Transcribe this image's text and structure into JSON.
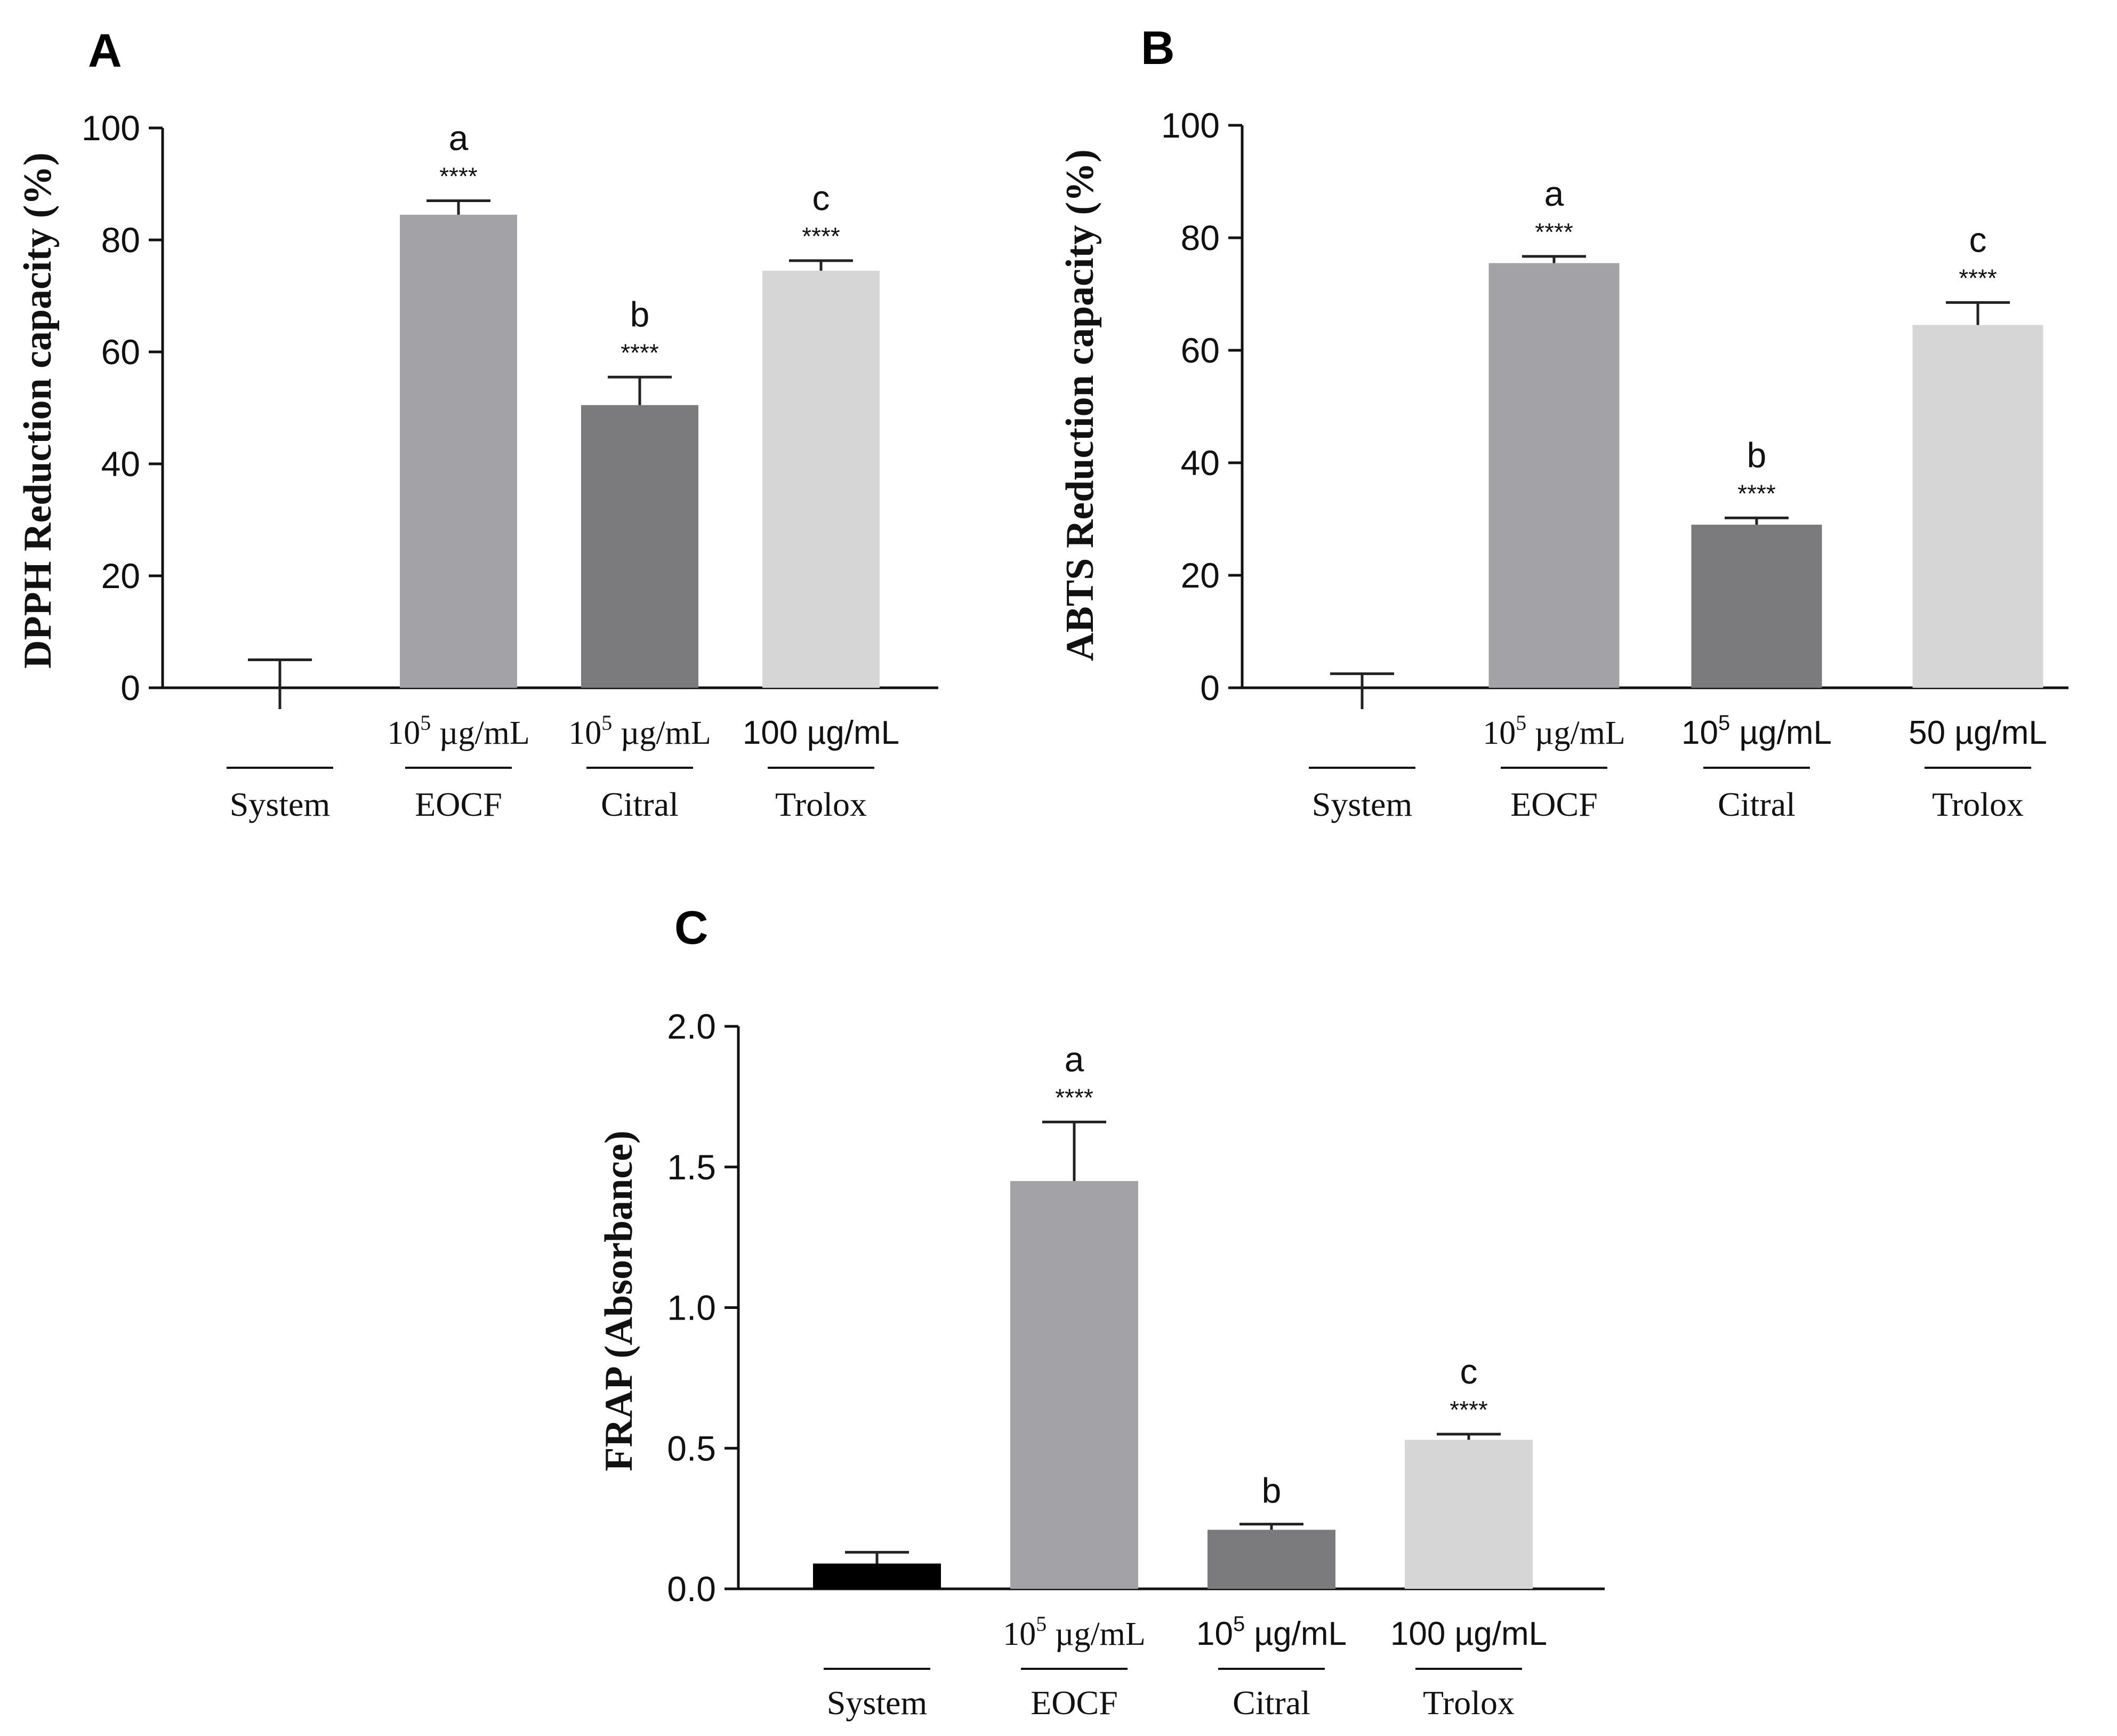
{
  "chart_data": [
    {
      "panel": "A",
      "type": "bar",
      "ylabel": "DPPH Reduction capacity (%)",
      "ylim": [
        0,
        100
      ],
      "yticks": [
        "0",
        "20",
        "40",
        "60",
        "80",
        "100"
      ],
      "categories": [
        "System",
        "EOCF",
        "Citral",
        "Trolox"
      ],
      "concentrations": [
        {
          "base": "",
          "sup": "",
          "unit": ""
        },
        {
          "base": "10",
          "sup": "5",
          "unit": " µg/mL"
        },
        {
          "base": "10",
          "sup": "5",
          "unit": " µg/mL"
        },
        {
          "base": "100",
          "sup": "",
          "unit": " µg/mL"
        }
      ],
      "values": [
        0,
        84.5,
        50.5,
        74.5
      ],
      "errors": [
        5,
        2.5,
        5,
        1.8
      ],
      "letters": [
        "",
        "a",
        "b",
        "c"
      ],
      "stars": [
        "",
        "****",
        "****",
        "****"
      ],
      "colors": [
        "#000000",
        "#a3a2a7",
        "#7b7b7d",
        "#d6d6d6"
      ]
    },
    {
      "panel": "B",
      "type": "bar",
      "ylabel": "ABTS Reduction capacity (%)",
      "ylim": [
        0,
        100
      ],
      "yticks": [
        "0",
        "20",
        "40",
        "60",
        "80",
        "100"
      ],
      "categories": [
        "System",
        "EOCF",
        "Citral",
        "Trolox"
      ],
      "concentrations": [
        {
          "base": "",
          "sup": "",
          "unit": ""
        },
        {
          "base": "10",
          "sup": "5",
          "unit": " µg/mL"
        },
        {
          "base": "10",
          "sup": "5",
          "unit": " µg/mL"
        },
        {
          "base": "50",
          "sup": "",
          "unit": " µg/mL"
        }
      ],
      "values": [
        0,
        75.5,
        29,
        64.5
      ],
      "errors": [
        2.5,
        1.2,
        1.2,
        4
      ],
      "letters": [
        "",
        "a",
        "b",
        "c"
      ],
      "stars": [
        "",
        "****",
        "****",
        "****"
      ],
      "colors": [
        "#000000",
        "#a3a2a7",
        "#7b7b7d",
        "#d6d6d6"
      ]
    },
    {
      "panel": "C",
      "type": "bar",
      "ylabel": "FRAP (Absorbance)",
      "ylim": [
        0,
        2.0
      ],
      "yticks": [
        "0.0",
        "0.5",
        "1.0",
        "1.5",
        "2.0"
      ],
      "categories": [
        "System",
        "EOCF",
        "Citral",
        "Trolox"
      ],
      "concentrations": [
        {
          "base": "",
          "sup": "",
          "unit": ""
        },
        {
          "base": "10",
          "sup": "5",
          "unit": " µg/mL"
        },
        {
          "base": "10",
          "sup": "5",
          "unit": " µg/mL"
        },
        {
          "base": "100",
          "sup": "",
          "unit": " µg/mL"
        }
      ],
      "values": [
        0.09,
        1.45,
        0.21,
        0.53
      ],
      "errors": [
        0.04,
        0.21,
        0.02,
        0.02
      ],
      "letters": [
        "",
        "a",
        "b",
        "c"
      ],
      "stars": [
        "",
        "****",
        "",
        "****"
      ],
      "colors": [
        "#000000",
        "#a3a2a7",
        "#7b7b7d",
        "#d6d6d6"
      ]
    }
  ]
}
